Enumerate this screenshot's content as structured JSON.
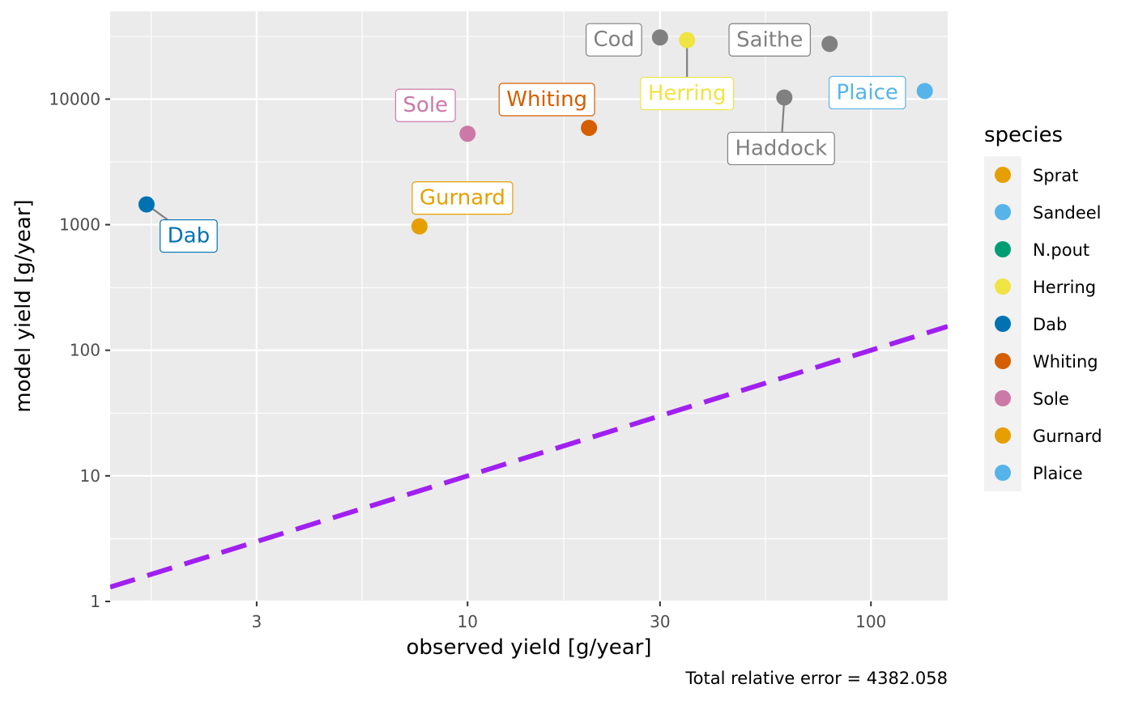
{
  "chart_data": {
    "type": "scatter",
    "xlabel": "observed yield [g/year]",
    "ylabel": "model yield [g/year]",
    "x_scale": "log10",
    "y_scale": "log10",
    "xlim": [
      1.3,
      155
    ],
    "ylim": [
      1,
      50000
    ],
    "x_ticks": [
      3,
      10,
      30,
      100
    ],
    "y_ticks": [
      1,
      10,
      100,
      1000,
      10000
    ],
    "grid": true,
    "legend": {
      "title": "species",
      "placement": "right"
    },
    "caption": "Total relative error = 4382.058",
    "reference_line": {
      "description": "y = x",
      "style": "dashed",
      "color": "#a020f0"
    },
    "legend_entries": [
      {
        "name": "Sprat",
        "color": "#E69F00"
      },
      {
        "name": "Sandeel",
        "color": "#56B4E9"
      },
      {
        "name": "N.pout",
        "color": "#009E73"
      },
      {
        "name": "Herring",
        "color": "#F0E442"
      },
      {
        "name": "Dab",
        "color": "#0072B2"
      },
      {
        "name": "Whiting",
        "color": "#D55E00"
      },
      {
        "name": "Sole",
        "color": "#CC79A7"
      },
      {
        "name": "Gurnard",
        "color": "#E69F00"
      },
      {
        "name": "Plaice",
        "color": "#56B4E9"
      }
    ],
    "points": [
      {
        "species": "Dab",
        "x": 1.6,
        "y": 1450,
        "color": "#0072B2"
      },
      {
        "species": "Gurnard",
        "x": 7.6,
        "y": 970,
        "color": "#E69F00"
      },
      {
        "species": "Sole",
        "x": 10,
        "y": 5300,
        "color": "#CC79A7"
      },
      {
        "species": "Whiting",
        "x": 20,
        "y": 5900,
        "color": "#D55E00"
      },
      {
        "species": "Cod",
        "x": 30,
        "y": 31000,
        "color": "#808080"
      },
      {
        "species": "Herring",
        "x": 35,
        "y": 29500,
        "color": "#F0E442"
      },
      {
        "species": "Haddock",
        "x": 61,
        "y": 10300,
        "color": "#808080"
      },
      {
        "species": "Saithe",
        "x": 79,
        "y": 27500,
        "color": "#808080"
      },
      {
        "species": "Plaice",
        "x": 136,
        "y": 11600,
        "color": "#56B4E9"
      }
    ]
  }
}
